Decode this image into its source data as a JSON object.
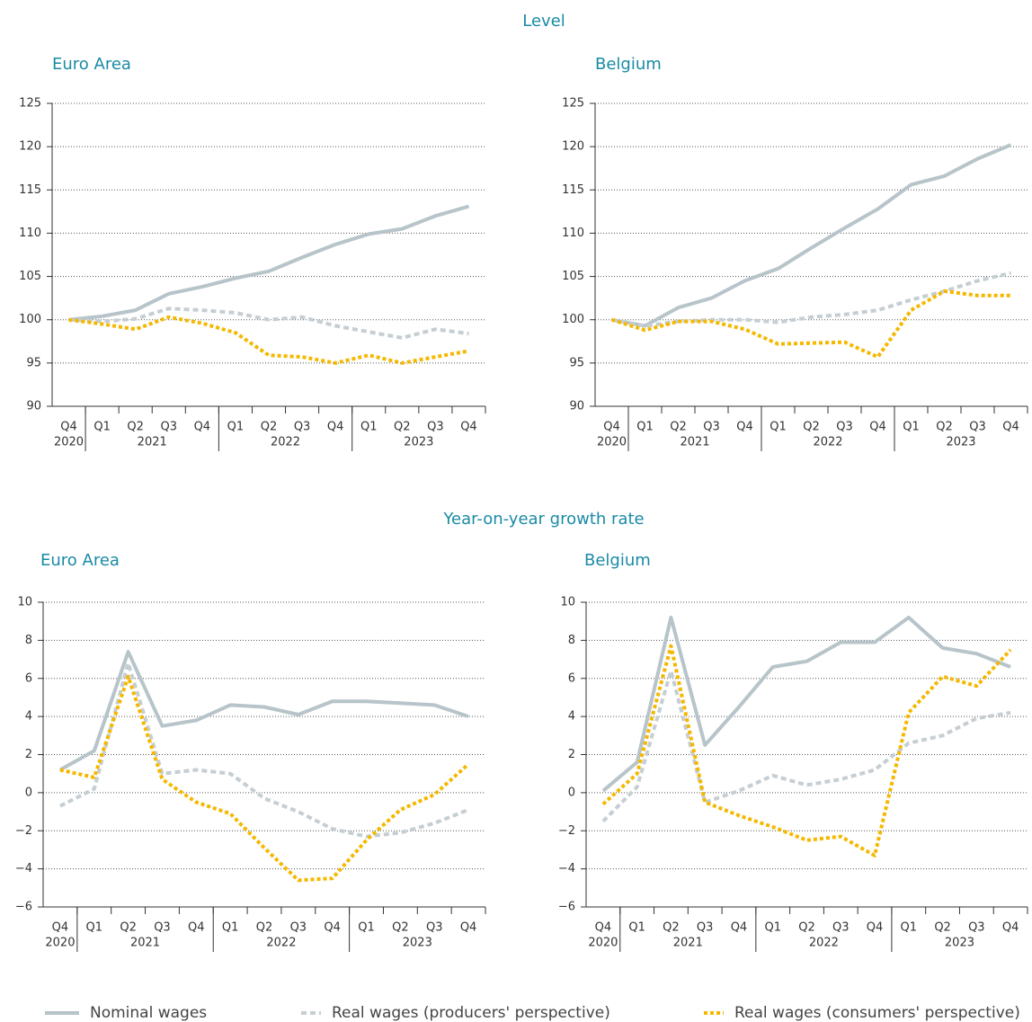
{
  "sections": [
    "Level",
    "Year-on-year growth rate"
  ],
  "chart_data": [
    {
      "type": "line",
      "title": "Euro Area",
      "categories": [
        "Q4",
        "Q1",
        "Q2",
        "Q3",
        "Q4",
        "Q1",
        "Q2",
        "Q3",
        "Q4",
        "Q1",
        "Q2",
        "Q3",
        "Q4"
      ],
      "category_groups": [
        {
          "label": "2020",
          "count": 1
        },
        {
          "label": "2021",
          "count": 4
        },
        {
          "label": "2022",
          "count": 4
        },
        {
          "label": "2023",
          "count": 4
        }
      ],
      "ylim": [
        90,
        125
      ],
      "yticks": [
        90,
        95,
        100,
        105,
        110,
        115,
        120,
        125
      ],
      "grid": true,
      "series": [
        {
          "name": "Nominal wages",
          "color": "#b7c4c9",
          "style": "solid",
          "values": [
            100,
            100.4,
            101.1,
            103.0,
            103.8,
            104.8,
            105.6,
            107.2,
            108.7,
            109.9,
            110.5,
            112.0,
            113.1
          ]
        },
        {
          "name": "Real wages (producers' perspective)",
          "color": "#c5ced3",
          "style": "dashed",
          "values": [
            100,
            99.8,
            100.1,
            101.3,
            101.1,
            100.8,
            100.0,
            100.3,
            99.3,
            98.6,
            97.9,
            98.9,
            98.4
          ]
        },
        {
          "name": "Real wages (consumers' perspective)",
          "color": "#f5b800",
          "style": "dotted",
          "values": [
            100,
            99.5,
            98.9,
            100.3,
            99.6,
            98.5,
            95.9,
            95.7,
            95.0,
            95.9,
            95.0,
            95.7,
            96.4
          ]
        }
      ]
    },
    {
      "type": "line",
      "title": "Belgium",
      "categories": [
        "Q4",
        "Q1",
        "Q2",
        "Q3",
        "Q4",
        "Q1",
        "Q2",
        "Q3",
        "Q4",
        "Q1",
        "Q2",
        "Q3",
        "Q4"
      ],
      "category_groups": [
        {
          "label": "2020",
          "count": 1
        },
        {
          "label": "2021",
          "count": 4
        },
        {
          "label": "2022",
          "count": 4
        },
        {
          "label": "2023",
          "count": 4
        }
      ],
      "ylim": [
        90,
        125
      ],
      "yticks": [
        90,
        95,
        100,
        105,
        110,
        115,
        120,
        125
      ],
      "grid": true,
      "series": [
        {
          "name": "Nominal wages",
          "color": "#b7c4c9",
          "style": "solid",
          "values": [
            100,
            99.3,
            101.4,
            102.5,
            104.5,
            105.9,
            108.3,
            110.6,
            112.8,
            115.6,
            116.6,
            118.6,
            120.2
          ]
        },
        {
          "name": "Real wages (producers' perspective)",
          "color": "#c5ced3",
          "style": "dashed",
          "values": [
            100,
            99.3,
            99.8,
            100.0,
            100.0,
            99.7,
            100.3,
            100.6,
            101.1,
            102.3,
            103.3,
            104.5,
            105.4
          ]
        },
        {
          "name": "Real wages (consumers' perspective)",
          "color": "#f5b800",
          "style": "dotted",
          "values": [
            100,
            98.8,
            99.8,
            99.8,
            98.9,
            97.2,
            97.3,
            97.4,
            95.7,
            101.1,
            103.3,
            102.8,
            102.8
          ]
        }
      ]
    },
    {
      "type": "line",
      "title": "Euro Area",
      "categories": [
        "Q4",
        "Q1",
        "Q2",
        "Q3",
        "Q4",
        "Q1",
        "Q2",
        "Q3",
        "Q4",
        "Q1",
        "Q2",
        "Q3",
        "Q4"
      ],
      "category_groups": [
        {
          "label": "2020",
          "count": 1
        },
        {
          "label": "2021",
          "count": 4
        },
        {
          "label": "2022",
          "count": 4
        },
        {
          "label": "2023",
          "count": 4
        }
      ],
      "ylim": [
        -6,
        10
      ],
      "yticks": [
        {
          "value": -6,
          "label": "−6"
        },
        {
          "value": -4,
          "label": "−4"
        },
        {
          "value": -2,
          "label": "−2"
        },
        0,
        2,
        4,
        6,
        8,
        10
      ],
      "grid": true,
      "series": [
        {
          "name": "Nominal wages",
          "color": "#b7c4c9",
          "style": "solid",
          "values": [
            1.2,
            2.2,
            7.4,
            3.5,
            3.8,
            4.6,
            4.5,
            4.1,
            4.8,
            4.8,
            4.7,
            4.6,
            4.0
          ]
        },
        {
          "name": "Real wages (producers' perspective)",
          "color": "#c5ced3",
          "style": "dashed",
          "values": [
            -0.7,
            0.2,
            6.8,
            1.0,
            1.2,
            1.0,
            -0.3,
            -1.0,
            -1.9,
            -2.3,
            -2.1,
            -1.6,
            -0.9
          ]
        },
        {
          "name": "Real wages (consumers' perspective)",
          "color": "#f5b800",
          "style": "dotted",
          "values": [
            1.2,
            0.8,
            6.1,
            0.7,
            -0.5,
            -1.1,
            -2.9,
            -4.6,
            -4.5,
            -2.5,
            -0.9,
            -0.1,
            1.5
          ]
        }
      ]
    },
    {
      "type": "line",
      "title": "Belgium",
      "categories": [
        "Q4",
        "Q1",
        "Q2",
        "Q3",
        "Q4",
        "Q1",
        "Q2",
        "Q3",
        "Q4",
        "Q1",
        "Q2",
        "Q3",
        "Q4"
      ],
      "category_groups": [
        {
          "label": "2020",
          "count": 1
        },
        {
          "label": "2021",
          "count": 4
        },
        {
          "label": "2022",
          "count": 4
        },
        {
          "label": "2023",
          "count": 4
        }
      ],
      "ylim": [
        -6,
        10
      ],
      "yticks": [
        {
          "value": -6,
          "label": "−6"
        },
        {
          "value": -4,
          "label": "−4"
        },
        {
          "value": -2,
          "label": "−2"
        },
        0,
        2,
        4,
        6,
        8,
        10
      ],
      "grid": true,
      "series": [
        {
          "name": "Nominal wages",
          "color": "#b7c4c9",
          "style": "solid",
          "values": [
            0.1,
            1.6,
            9.2,
            2.5,
            4.5,
            6.6,
            6.9,
            7.9,
            7.9,
            9.2,
            7.6,
            7.3,
            6.6
          ]
        },
        {
          "name": "Real wages (producers' perspective)",
          "color": "#c5ced3",
          "style": "dashed",
          "values": [
            -1.5,
            0.3,
            6.4,
            -0.5,
            0.1,
            0.9,
            0.4,
            0.7,
            1.2,
            2.6,
            3.0,
            3.9,
            4.2
          ]
        },
        {
          "name": "Real wages (consumers' perspective)",
          "color": "#f5b800",
          "style": "dotted",
          "values": [
            -0.6,
            1.0,
            7.7,
            -0.5,
            -1.2,
            -1.8,
            -2.5,
            -2.3,
            -3.3,
            4.2,
            6.1,
            5.6,
            7.5
          ]
        }
      ]
    }
  ]
}
